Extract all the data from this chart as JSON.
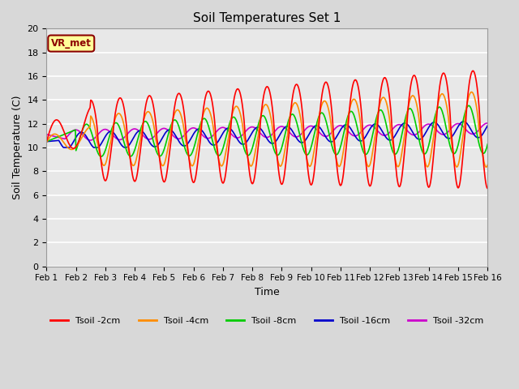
{
  "title": "Soil Temperatures Set 1",
  "xlabel": "Time",
  "ylabel": "Soil Temperature (C)",
  "ylim": [
    0,
    20
  ],
  "xlim_days": 15,
  "annotation": "VR_met",
  "legend": [
    {
      "label": "Tsoil -2cm",
      "color": "#FF0000"
    },
    {
      "label": "Tsoil -4cm",
      "color": "#FF8C00"
    },
    {
      "label": "Tsoil -8cm",
      "color": "#00CC00"
    },
    {
      "label": "Tsoil -16cm",
      "color": "#0000CC"
    },
    {
      "label": "Tsoil -32cm",
      "color": "#CC00CC"
    }
  ],
  "xtick_labels": [
    "Feb 1",
    "Feb 2",
    "Feb 3",
    "Feb 4",
    "Feb 5",
    "Feb 6",
    "Feb 7",
    "Feb 8",
    "Feb 9",
    "Feb 10",
    "Feb 11",
    "Feb 12",
    "Feb 13",
    "Feb 14",
    "Feb 15",
    "Feb 16"
  ],
  "ytick_values": [
    0,
    2,
    4,
    6,
    8,
    10,
    12,
    14,
    16,
    18,
    20
  ],
  "background_color": "#E8E8E8",
  "grid_color": "#FFFFFF",
  "figsize": [
    6.4,
    4.8
  ],
  "dpi": 100
}
